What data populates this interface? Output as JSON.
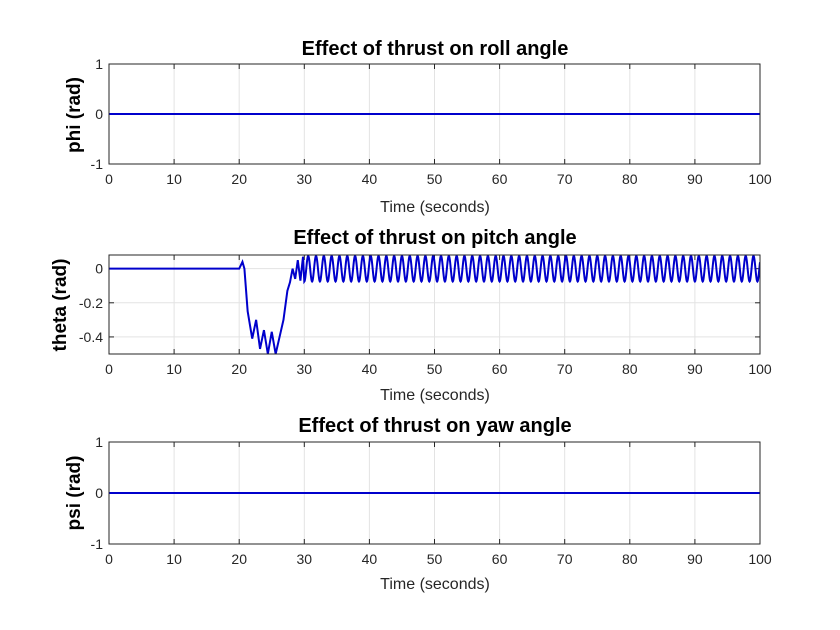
{
  "chart_data": [
    {
      "type": "line",
      "title": "Effect of thrust on roll angle",
      "xlabel": "Time (seconds)",
      "ylabel": "phi (rad)",
      "xlim": [
        0,
        100
      ],
      "ylim": [
        -1,
        1
      ],
      "xticks": [
        "0",
        "10",
        "20",
        "30",
        "40",
        "50",
        "60",
        "70",
        "80",
        "90",
        "100"
      ],
      "yticks": [
        "-1",
        "0",
        "1"
      ],
      "grid": true,
      "color": "#0000cc",
      "series": [
        {
          "x": [
            0,
            100
          ],
          "y": [
            0,
            0
          ]
        }
      ]
    },
    {
      "type": "line",
      "title": "Effect of thrust on pitch angle",
      "xlabel": "Time (seconds)",
      "ylabel": "theta (rad)",
      "xlim": [
        0,
        100
      ],
      "ylim": [
        -0.5,
        0.08
      ],
      "xticks": [
        "0",
        "10",
        "20",
        "30",
        "40",
        "50",
        "60",
        "70",
        "80",
        "90",
        "100"
      ],
      "yticks": [
        "-0.4",
        "-0.2",
        "0"
      ],
      "grid": true,
      "color": "#0000cc",
      "series": [
        {
          "x": [
            0,
            20,
            20.5,
            20.8,
            21.3,
            22.0,
            22.6,
            23.2,
            23.8,
            24.4,
            25.0,
            25.6,
            26.2,
            26.8,
            27.4,
            27.8,
            28.2,
            28.6,
            29.0,
            29.4,
            29.8
          ],
          "y": [
            0,
            0,
            0.04,
            0.0,
            -0.25,
            -0.41,
            -0.3,
            -0.47,
            -0.36,
            -0.5,
            -0.37,
            -0.5,
            -0.4,
            -0.3,
            -0.13,
            -0.08,
            0.0,
            -0.06,
            0.05,
            -0.07,
            0.07
          ]
        }
      ],
      "oscillation": {
        "x_start": 30,
        "x_end": 100,
        "amplitude": 0.075,
        "period": 1.2
      }
    },
    {
      "type": "line",
      "title": "Effect of thrust on yaw angle",
      "xlabel": "Time (seconds)",
      "ylabel": "psi (rad)",
      "xlim": [
        0,
        100
      ],
      "ylim": [
        -1,
        1
      ],
      "xticks": [
        "0",
        "10",
        "20",
        "30",
        "40",
        "50",
        "60",
        "70",
        "80",
        "90",
        "100"
      ],
      "yticks": [
        "-1",
        "0",
        "1"
      ],
      "grid": true,
      "color": "#0000cc",
      "series": [
        {
          "x": [
            0,
            100
          ],
          "y": [
            0,
            0
          ]
        }
      ]
    }
  ]
}
